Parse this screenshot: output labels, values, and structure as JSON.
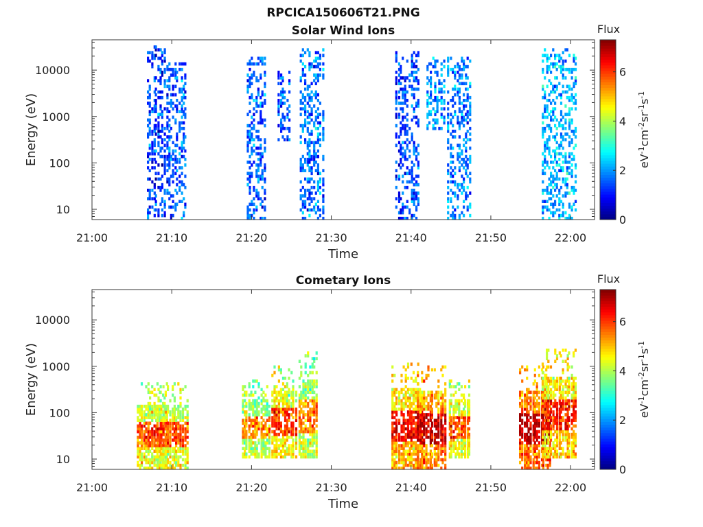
{
  "figure": {
    "filename": "RPCICA150606T21.PNG"
  },
  "colorbar": {
    "label_html": [
      "eV",
      "-1",
      "cm",
      "-2",
      "sr",
      "-1",
      "s",
      "-1"
    ],
    "title": "Flux",
    "ticks": [
      "0",
      "2",
      "4",
      "6"
    ],
    "range": [
      0,
      7.3
    ],
    "colormap": "jet"
  },
  "chart_data": [
    {
      "type": "heatmap",
      "title": "Solar Wind Ions",
      "xlabel": "Time",
      "ylabel": "Energy (eV)",
      "x_ticks": [
        "21:00",
        "21:10",
        "21:20",
        "21:30",
        "21:40",
        "21:50",
        "22:00"
      ],
      "y_ticks": [
        "10",
        "100",
        "1000",
        "10000"
      ],
      "y_scale": "log",
      "y_range": [
        6,
        45000
      ],
      "x_range": [
        "21:00",
        "22:03"
      ],
      "clusters": [
        {
          "t": "21:08",
          "spread_min": 1.2,
          "e_min": 6,
          "e_max": 35000,
          "flux_mean": 1.3
        },
        {
          "t": "21:10.5",
          "spread_min": 1.3,
          "e_min": 6,
          "e_max": 15000,
          "flux_mean": 1.5
        },
        {
          "t": "21:20.5",
          "spread_min": 1.2,
          "e_min": 6,
          "e_max": 20000,
          "flux_mean": 1.6
        },
        {
          "t": "21:24",
          "spread_min": 0.8,
          "e_min": 300,
          "e_max": 10000,
          "flux_mean": 1.5
        },
        {
          "t": "21:27.5",
          "spread_min": 1.5,
          "e_min": 6,
          "e_max": 30000,
          "flux_mean": 1.7
        },
        {
          "t": "21:39.5",
          "spread_min": 1.5,
          "e_min": 6,
          "e_max": 25000,
          "flux_mean": 1.4
        },
        {
          "t": "21:43",
          "spread_min": 1.2,
          "e_min": 500,
          "e_max": 20000,
          "flux_mean": 2.0
        },
        {
          "t": "21:46",
          "spread_min": 1.5,
          "e_min": 6,
          "e_max": 20000,
          "flux_mean": 1.8
        },
        {
          "t": "21:58.5",
          "spread_min": 2.2,
          "e_min": 6,
          "e_max": 30000,
          "flux_mean": 2.2
        }
      ]
    },
    {
      "type": "heatmap",
      "title": "Cometary Ions",
      "xlabel": "Time",
      "ylabel": "Energy (eV)",
      "x_ticks": [
        "21:00",
        "21:10",
        "21:20",
        "21:30",
        "21:40",
        "21:50",
        "22:00"
      ],
      "y_ticks": [
        "10",
        "100",
        "1000",
        "10000"
      ],
      "y_scale": "log",
      "y_range": [
        6,
        45000
      ],
      "x_range": [
        "21:00",
        "22:03"
      ],
      "clusters": [
        {
          "t": "21:07.5",
          "spread_min": 2.0,
          "e_min": 6,
          "e_max": 450,
          "flux_mean": 4.6
        },
        {
          "t": "21:10",
          "spread_min": 2.0,
          "e_min": 6,
          "e_max": 450,
          "flux_mean": 4.6
        },
        {
          "t": "21:20.5",
          "spread_min": 1.8,
          "e_min": 10,
          "e_max": 500,
          "flux_mean": 4.2
        },
        {
          "t": "21:24",
          "spread_min": 1.6,
          "e_min": 10,
          "e_max": 1000,
          "flux_mean": 4.7
        },
        {
          "t": "21:27",
          "spread_min": 1.2,
          "e_min": 10,
          "e_max": 2000,
          "flux_mean": 4.2
        },
        {
          "t": "21:39.5",
          "spread_min": 2.0,
          "e_min": 6,
          "e_max": 1200,
          "flux_mean": 5.2
        },
        {
          "t": "21:42.5",
          "spread_min": 1.8,
          "e_min": 6,
          "e_max": 1000,
          "flux_mean": 5.6
        },
        {
          "t": "21:46",
          "spread_min": 1.4,
          "e_min": 10,
          "e_max": 500,
          "flux_mean": 4.6
        },
        {
          "t": "21:55.5",
          "spread_min": 2.0,
          "e_min": 6,
          "e_max": 1000,
          "flux_mean": 5.8
        },
        {
          "t": "21:58.5",
          "spread_min": 2.2,
          "e_min": 10,
          "e_max": 2500,
          "flux_mean": 5.0
        }
      ]
    }
  ]
}
